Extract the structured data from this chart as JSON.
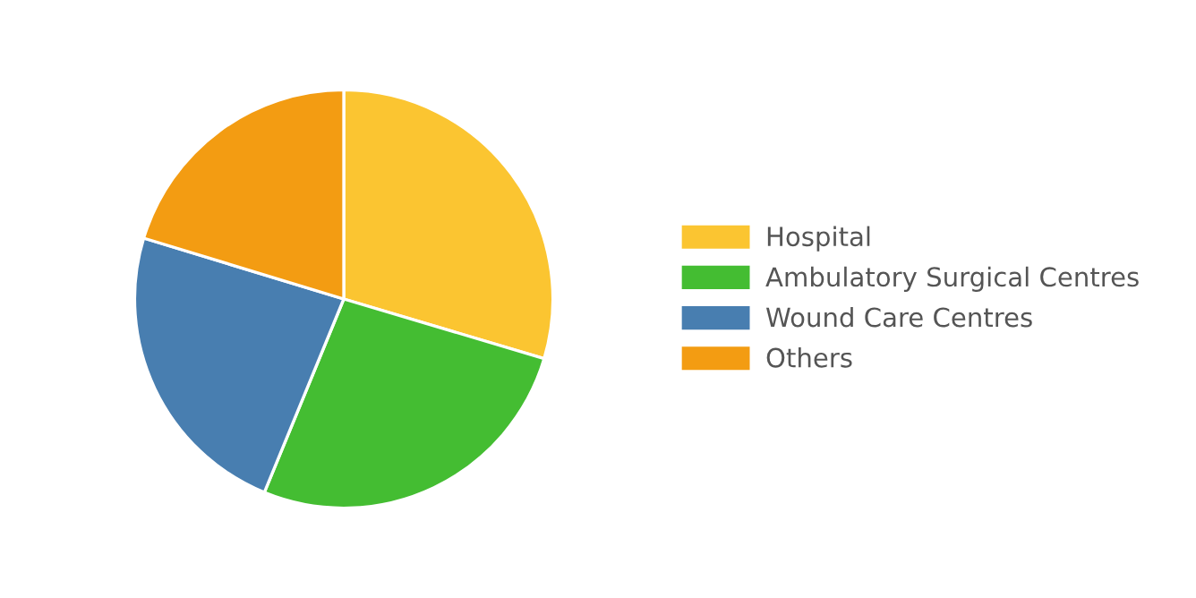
{
  "chart_data": {
    "type": "pie",
    "categories": [
      "Hospital",
      "Ambulatory Surgical Centres",
      "Wound Care Centres",
      "Others"
    ],
    "values": [
      29.6,
      26.6,
      23.5,
      20.3
    ],
    "colors": [
      "#fbc531",
      "#44bd32",
      "#487eb0",
      "#f39c12"
    ],
    "legend": "right"
  }
}
